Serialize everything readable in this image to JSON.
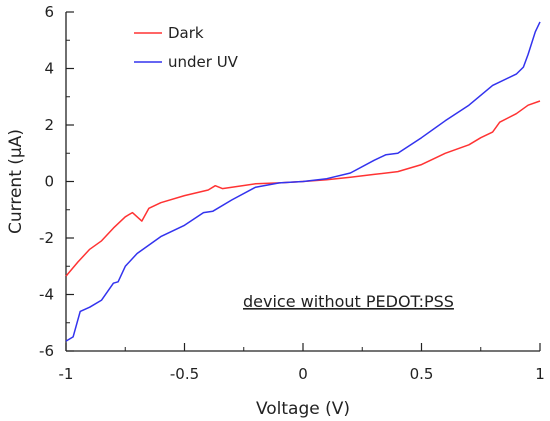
{
  "chart_data": {
    "type": "line",
    "xlabel": "Voltage (V)",
    "ylabel": "Current (μA)",
    "xlim": [
      -1,
      1
    ],
    "ylim": [
      -6,
      6
    ],
    "xticks": [
      -1,
      -0.5,
      0,
      0.5,
      1
    ],
    "xtick_labels": [
      "-1",
      "-0.5",
      "0",
      "0.5",
      "1"
    ],
    "yticks": [
      -6,
      -4,
      -2,
      0,
      2,
      4,
      6
    ],
    "ytick_labels": [
      "-6",
      "-4",
      "-2",
      "0",
      "2",
      "4",
      "6"
    ],
    "grid": false,
    "legend_position": "top-left",
    "annotation": "device without PEDOT:PSS",
    "series": [
      {
        "name": "Dark",
        "color": "#ff3333",
        "points": [
          [
            -1.0,
            -3.35
          ],
          [
            -0.95,
            -2.85
          ],
          [
            -0.9,
            -2.4
          ],
          [
            -0.85,
            -2.1
          ],
          [
            -0.8,
            -1.65
          ],
          [
            -0.75,
            -1.25
          ],
          [
            -0.72,
            -1.1
          ],
          [
            -0.68,
            -1.4
          ],
          [
            -0.65,
            -0.95
          ],
          [
            -0.6,
            -0.75
          ],
          [
            -0.5,
            -0.5
          ],
          [
            -0.4,
            -0.3
          ],
          [
            -0.37,
            -0.15
          ],
          [
            -0.34,
            -0.25
          ],
          [
            -0.3,
            -0.2
          ],
          [
            -0.2,
            -0.08
          ],
          [
            -0.1,
            -0.05
          ],
          [
            0.0,
            0.0
          ],
          [
            0.1,
            0.06
          ],
          [
            0.2,
            0.15
          ],
          [
            0.3,
            0.25
          ],
          [
            0.4,
            0.35
          ],
          [
            0.5,
            0.6
          ],
          [
            0.55,
            0.8
          ],
          [
            0.6,
            1.0
          ],
          [
            0.7,
            1.3
          ],
          [
            0.75,
            1.55
          ],
          [
            0.8,
            1.75
          ],
          [
            0.83,
            2.1
          ],
          [
            0.9,
            2.4
          ],
          [
            0.95,
            2.7
          ],
          [
            1.0,
            2.85
          ]
        ]
      },
      {
        "name": "under UV",
        "color": "#3333ee",
        "points": [
          [
            -1.0,
            -5.65
          ],
          [
            -0.97,
            -5.5
          ],
          [
            -0.94,
            -4.6
          ],
          [
            -0.9,
            -4.45
          ],
          [
            -0.85,
            -4.2
          ],
          [
            -0.8,
            -3.6
          ],
          [
            -0.78,
            -3.55
          ],
          [
            -0.75,
            -3.0
          ],
          [
            -0.7,
            -2.55
          ],
          [
            -0.6,
            -1.95
          ],
          [
            -0.5,
            -1.55
          ],
          [
            -0.42,
            -1.1
          ],
          [
            -0.38,
            -1.05
          ],
          [
            -0.3,
            -0.65
          ],
          [
            -0.2,
            -0.2
          ],
          [
            -0.1,
            -0.05
          ],
          [
            0.0,
            0.0
          ],
          [
            0.1,
            0.1
          ],
          [
            0.2,
            0.3
          ],
          [
            0.3,
            0.75
          ],
          [
            0.35,
            0.95
          ],
          [
            0.4,
            1.0
          ],
          [
            0.5,
            1.55
          ],
          [
            0.6,
            2.15
          ],
          [
            0.7,
            2.7
          ],
          [
            0.8,
            3.4
          ],
          [
            0.9,
            3.8
          ],
          [
            0.93,
            4.05
          ],
          [
            0.95,
            4.5
          ],
          [
            0.98,
            5.3
          ],
          [
            1.0,
            5.65
          ]
        ]
      }
    ]
  }
}
